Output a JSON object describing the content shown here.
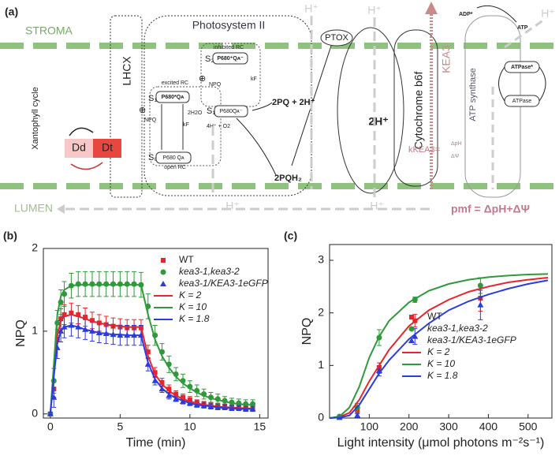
{
  "diagram": {
    "label": "(a)",
    "stroma": "STROMA",
    "lumen": "LUMEN",
    "photosystem": "Photosystem II",
    "lhcx": "LHCX",
    "xantophyll": "Xantophyll cycle",
    "dd": "Dd",
    "dt": "Dt",
    "ptox": "PTOX",
    "pq": "2PQ + 2H⁺",
    "pqh2": "2PQH₂",
    "h2": "2H⁺",
    "cyt": "Cytochrome b6f",
    "kea3": "KEA3",
    "atp_synthase": "ATP synthase",
    "adp": "ADP*",
    "atp": "ATP",
    "atpase_star": "ATPase*",
    "atpase": "ATPase",
    "h_plus": [
      "H⁺",
      "H⁺",
      "H⁺",
      "H⁺",
      "H⁺"
    ],
    "pmf": "pmf = ΔpH+ΔΨ",
    "kkea3": "kKEA3=",
    "dph": "ΔpH",
    "dpsi": "ΔΨ",
    "inhibited": "inhibited RC",
    "excited": "excited RC",
    "open": "open RC",
    "npq": [
      "NPQ",
      "NPQ"
    ],
    "s2": "S₂",
    "s1": "S₁",
    "s0": "S₀",
    "s1b": "S₁",
    "p680_inh": "P680⁺Qᴀ⁻",
    "p680_exc": "P680*Qᴀ",
    "p680_mid": "P680Qᴀ⁻",
    "p680_open": "P680 Qᴀ",
    "kf": [
      "kF",
      "kF"
    ],
    "h2o": "2H2O",
    "o2": "4H⁺ + O2",
    "plus": [
      "⊕",
      "⊕"
    ]
  },
  "chart_data": [
    {
      "type": "line",
      "label": "(b)",
      "xlabel": "Time (min)",
      "ylabel": "NPQ",
      "x": [
        0,
        0.25,
        0.5,
        0.75,
        1,
        1.5,
        2,
        2.5,
        3,
        3.5,
        4,
        4.5,
        5,
        5.5,
        6,
        6.5,
        7,
        7.5,
        8,
        8.5,
        9,
        9.5,
        10,
        10.5,
        11,
        11.5,
        12,
        12.5,
        13,
        13.5,
        14,
        14.5
      ],
      "xlim": [
        -0.5,
        15.6
      ],
      "xticks": [
        0,
        5,
        10,
        15
      ],
      "ylim": [
        -0.05,
        2
      ],
      "yticks": [
        0,
        1,
        2
      ],
      "legend": "upper right",
      "series": [
        {
          "name": "WT",
          "color": "#e8252a",
          "marker": "square",
          "values": [
            0,
            0.3,
            0.9,
            1.15,
            1.2,
            1.22,
            1.2,
            1.17,
            1.13,
            1.1,
            1.08,
            1.06,
            1.05,
            1.04,
            1.04,
            1.04,
            0.75,
            0.5,
            0.38,
            0.3,
            0.24,
            0.2,
            0.17,
            0.14,
            0.12,
            0.11,
            0.1,
            0.09,
            0.08,
            0.08,
            0.07,
            0.07
          ],
          "errors": [
            0.02,
            0.1,
            0.12,
            0.12,
            0.12,
            0.12,
            0.11,
            0.11,
            0.1,
            0.1,
            0.1,
            0.1,
            0.1,
            0.1,
            0.1,
            0.1,
            0.08,
            0.06,
            0.05,
            0.05,
            0.04,
            0.04,
            0.04,
            0.03,
            0.03,
            0.03,
            0.03,
            0.03,
            0.03,
            0.03,
            0.03,
            0.03
          ]
        },
        {
          "name": "kea3-1,kea3-2",
          "color": "#2e9a3a",
          "marker": "circle",
          "values": [
            0,
            0.4,
            1.1,
            1.35,
            1.45,
            1.55,
            1.57,
            1.57,
            1.57,
            1.57,
            1.57,
            1.57,
            1.57,
            1.57,
            1.57,
            1.56,
            1.3,
            0.95,
            0.75,
            0.6,
            0.48,
            0.4,
            0.33,
            0.28,
            0.24,
            0.2,
            0.18,
            0.16,
            0.14,
            0.13,
            0.12,
            0.12
          ],
          "errors": [
            0.02,
            0.15,
            0.15,
            0.15,
            0.15,
            0.15,
            0.15,
            0.15,
            0.15,
            0.15,
            0.15,
            0.15,
            0.15,
            0.15,
            0.15,
            0.15,
            0.15,
            0.12,
            0.1,
            0.1,
            0.08,
            0.08,
            0.07,
            0.07,
            0.06,
            0.06,
            0.06,
            0.05,
            0.05,
            0.05,
            0.05,
            0.05
          ]
        },
        {
          "name": "kea3-1/KEA3-1eGFP",
          "color": "#2a3be0",
          "marker": "triangle",
          "values": [
            0,
            0.2,
            0.8,
            1.0,
            1.05,
            1.07,
            1.05,
            1.02,
            1.0,
            0.98,
            0.97,
            0.96,
            0.95,
            0.95,
            0.95,
            0.95,
            0.6,
            0.4,
            0.3,
            0.22,
            0.18,
            0.15,
            0.13,
            0.11,
            0.1,
            0.09,
            0.08,
            0.08,
            0.07,
            0.07,
            0.06,
            0.06
          ],
          "errors": [
            0.02,
            0.12,
            0.13,
            0.13,
            0.13,
            0.13,
            0.13,
            0.12,
            0.12,
            0.12,
            0.12,
            0.12,
            0.12,
            0.12,
            0.12,
            0.12,
            0.08,
            0.05,
            0.04,
            0.04,
            0.03,
            0.03,
            0.03,
            0.03,
            0.03,
            0.03,
            0.03,
            0.03,
            0.03,
            0.03,
            0.03,
            0.03
          ]
        },
        {
          "name": "K = 2",
          "color": "#e8252a",
          "values": [
            0,
            0.5,
            0.95,
            1.12,
            1.18,
            1.2,
            1.18,
            1.15,
            1.12,
            1.1,
            1.08,
            1.07,
            1.06,
            1.05,
            1.05,
            1.05,
            0.7,
            0.48,
            0.36,
            0.28,
            0.22,
            0.18,
            0.15,
            0.13,
            0.11,
            0.1,
            0.09,
            0.08,
            0.08,
            0.07,
            0.07,
            0.06
          ]
        },
        {
          "name": "K = 10",
          "color": "#2e9a3a",
          "values": [
            0,
            0.6,
            1.2,
            1.42,
            1.5,
            1.55,
            1.56,
            1.56,
            1.56,
            1.56,
            1.56,
            1.56,
            1.56,
            1.56,
            1.56,
            1.56,
            1.2,
            0.9,
            0.7,
            0.56,
            0.45,
            0.37,
            0.31,
            0.26,
            0.22,
            0.19,
            0.17,
            0.15,
            0.13,
            0.12,
            0.11,
            0.11
          ]
        },
        {
          "name": "K = 1.8",
          "color": "#2a3be0",
          "values": [
            0,
            0.45,
            0.85,
            1.0,
            1.05,
            1.07,
            1.05,
            1.02,
            1.0,
            0.98,
            0.97,
            0.96,
            0.96,
            0.95,
            0.95,
            0.95,
            0.62,
            0.42,
            0.31,
            0.24,
            0.19,
            0.16,
            0.13,
            0.11,
            0.1,
            0.09,
            0.08,
            0.07,
            0.07,
            0.06,
            0.06,
            0.06
          ]
        }
      ]
    },
    {
      "type": "line",
      "label": "(c)",
      "xlabel": "Light intensity (μmol photons m⁻²s⁻¹)",
      "ylabel": "NPQ",
      "xlim": [
        0,
        560
      ],
      "xticks": [
        100,
        200,
        300,
        400,
        500
      ],
      "ylim": [
        0,
        3.3
      ],
      "yticks": [
        0,
        1,
        2,
        3
      ],
      "legend": "lower right",
      "series": [
        {
          "name": "WT",
          "color": "#e8252a",
          "marker": "square",
          "x": [
            25,
            70,
            125,
            215,
            380
          ],
          "values": [
            0.02,
            0.15,
            0.95,
            1.85,
            2.28
          ],
          "errors": [
            0.03,
            0.05,
            0.1,
            0.12,
            0.25
          ]
        },
        {
          "name": "kea3-1,kea3-2",
          "color": "#2e9a3a",
          "marker": "circle",
          "x": [
            25,
            70,
            125,
            215,
            380
          ],
          "values": [
            0.03,
            0.2,
            1.53,
            2.25,
            2.52
          ],
          "errors": [
            0.03,
            0.08,
            0.15,
            0.05,
            0.15
          ]
        },
        {
          "name": "kea3-1/KEA3-1eGFP",
          "color": "#2a3be0",
          "marker": "triangle",
          "x": [
            25,
            70,
            125,
            215,
            380
          ],
          "values": [
            0.01,
            0.05,
            0.9,
            1.55,
            2.15
          ],
          "errors": [
            0.02,
            0.03,
            0.1,
            0.15,
            0.28
          ]
        },
        {
          "name": "K = 2",
          "color": "#e8252a",
          "x": [
            0,
            25,
            50,
            75,
            100,
            125,
            150,
            200,
            250,
            300,
            350,
            400,
            450,
            500,
            550
          ],
          "values": [
            0,
            0.02,
            0.1,
            0.35,
            0.7,
            1.0,
            1.3,
            1.75,
            2.05,
            2.25,
            2.4,
            2.5,
            2.58,
            2.63,
            2.67
          ]
        },
        {
          "name": "K = 10",
          "color": "#2e9a3a",
          "x": [
            0,
            25,
            50,
            75,
            100,
            125,
            150,
            200,
            250,
            300,
            350,
            400,
            450,
            500,
            550
          ],
          "values": [
            0,
            0.03,
            0.2,
            0.6,
            1.15,
            1.55,
            1.85,
            2.2,
            2.42,
            2.55,
            2.63,
            2.68,
            2.71,
            2.73,
            2.74
          ]
        },
        {
          "name": "K = 1.8",
          "color": "#2a3be0",
          "x": [
            0,
            25,
            50,
            75,
            100,
            125,
            150,
            200,
            250,
            300,
            350,
            400,
            450,
            500,
            550
          ],
          "values": [
            0,
            0.01,
            0.05,
            0.25,
            0.55,
            0.85,
            1.1,
            1.5,
            1.8,
            2.05,
            2.22,
            2.35,
            2.46,
            2.55,
            2.62
          ]
        }
      ]
    }
  ]
}
